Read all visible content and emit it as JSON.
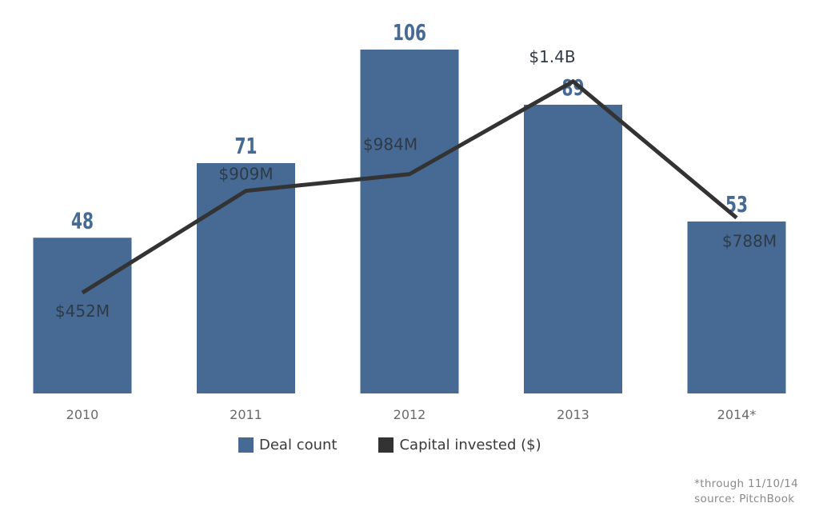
{
  "chart_data": {
    "type": "bar",
    "categories": [
      "2010",
      "2011",
      "2012",
      "2013",
      "2014*"
    ],
    "series": [
      {
        "name": "Deal count",
        "type": "bar",
        "values": [
          48,
          71,
          106,
          89,
          53
        ],
        "labels": [
          "48",
          "71",
          "106",
          "89",
          "53"
        ],
        "color": "#466a93"
      },
      {
        "name": "Capital invested ($)",
        "type": "line",
        "values": [
          452,
          909,
          984,
          1400,
          788
        ],
        "unit": "$M",
        "labels": [
          "$452M",
          "$909M",
          "$984M",
          "$1.4B",
          "$788M"
        ],
        "color": "#333333"
      }
    ],
    "ylim": [
      0,
      106
    ],
    "grid": false,
    "legend_position": "bottom"
  },
  "legend": {
    "items": [
      {
        "label": "Deal count",
        "color": "#466a93"
      },
      {
        "label": "Capital invested ($)",
        "color": "#333333"
      }
    ]
  },
  "footnote": {
    "line1": "*through 11/10/14",
    "line2": "source: PitchBook"
  }
}
